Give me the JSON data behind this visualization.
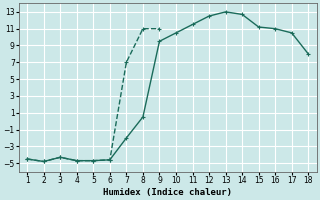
{
  "xlabel": "Humidex (Indice chaleur)",
  "bg_color": "#cce8e8",
  "grid_color": "#ffffff",
  "line_color": "#1a6b5a",
  "curve_steep_x": [
    1,
    2,
    3,
    4,
    5,
    6,
    7,
    8,
    9
  ],
  "curve_steep_y": [
    -4.5,
    -4.8,
    -4.3,
    -4.7,
    -4.7,
    -4.6,
    7.0,
    11.0,
    11.0
  ],
  "curve_gradual_x": [
    1,
    2,
    3,
    4,
    5,
    6,
    7,
    8,
    9,
    10,
    11,
    12,
    13,
    14,
    15,
    16,
    17,
    18
  ],
  "curve_gradual_y": [
    -4.5,
    -4.8,
    -4.3,
    -4.7,
    -4.7,
    -4.6,
    -2.0,
    0.5,
    9.5,
    10.5,
    11.5,
    12.5,
    13.0,
    12.7,
    11.2,
    11.0,
    10.5,
    8.0
  ],
  "xlim": [
    0.5,
    18.5
  ],
  "ylim": [
    -6,
    14
  ],
  "xticks": [
    1,
    2,
    3,
    4,
    5,
    6,
    7,
    8,
    9,
    10,
    11,
    12,
    13,
    14,
    15,
    16,
    17,
    18
  ],
  "yticks": [
    -5,
    -3,
    -1,
    1,
    3,
    5,
    7,
    9,
    11,
    13
  ]
}
